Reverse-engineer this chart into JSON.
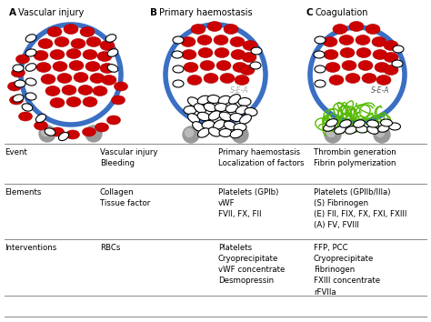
{
  "title_A": "Vascular injury",
  "title_B": "Primary haemostasis",
  "title_C": "Coagulation",
  "label_A": "A",
  "label_B": "B",
  "label_C": "C",
  "circle_color": "#3a6fc4",
  "rbc_color": "#cc0000",
  "rbc_outline": "#aa0000",
  "platelet_outline": "#000000",
  "fibrin_color": "#55bb00",
  "sea_color_B": "#bbbbbb",
  "sea_color_C": "#444444",
  "table_rows": [
    {
      "label": "Event",
      "col_A": "Vascular injury\nBleeding",
      "col_B": "Primary haemostasis\nLocalization of factors",
      "col_C": "Thrombin generation\nFibrin polymerization"
    },
    {
      "label": "Elements",
      "col_A": "Collagen\nTissue factor",
      "col_B": "Platelets (GPIb)\nvWF\nFVII, FX, FII",
      "col_C": "Platelets (GPIIb/IIIa)\n(S) Fibrinogen\n(E) FII, FIX, FX, FXI, FXIII\n(A) FV, FVIII"
    },
    {
      "label": "Interventions",
      "col_A": "RBCs",
      "col_B": "Platelets\nCryoprecipitate\nvWF concentrate\nDesmopressin",
      "col_C": "FFP, PCC\nCryoprecipitate\nFibrinogen\nFXIII concentrate\nrFVIIa"
    }
  ],
  "background_color": "#ffffff"
}
